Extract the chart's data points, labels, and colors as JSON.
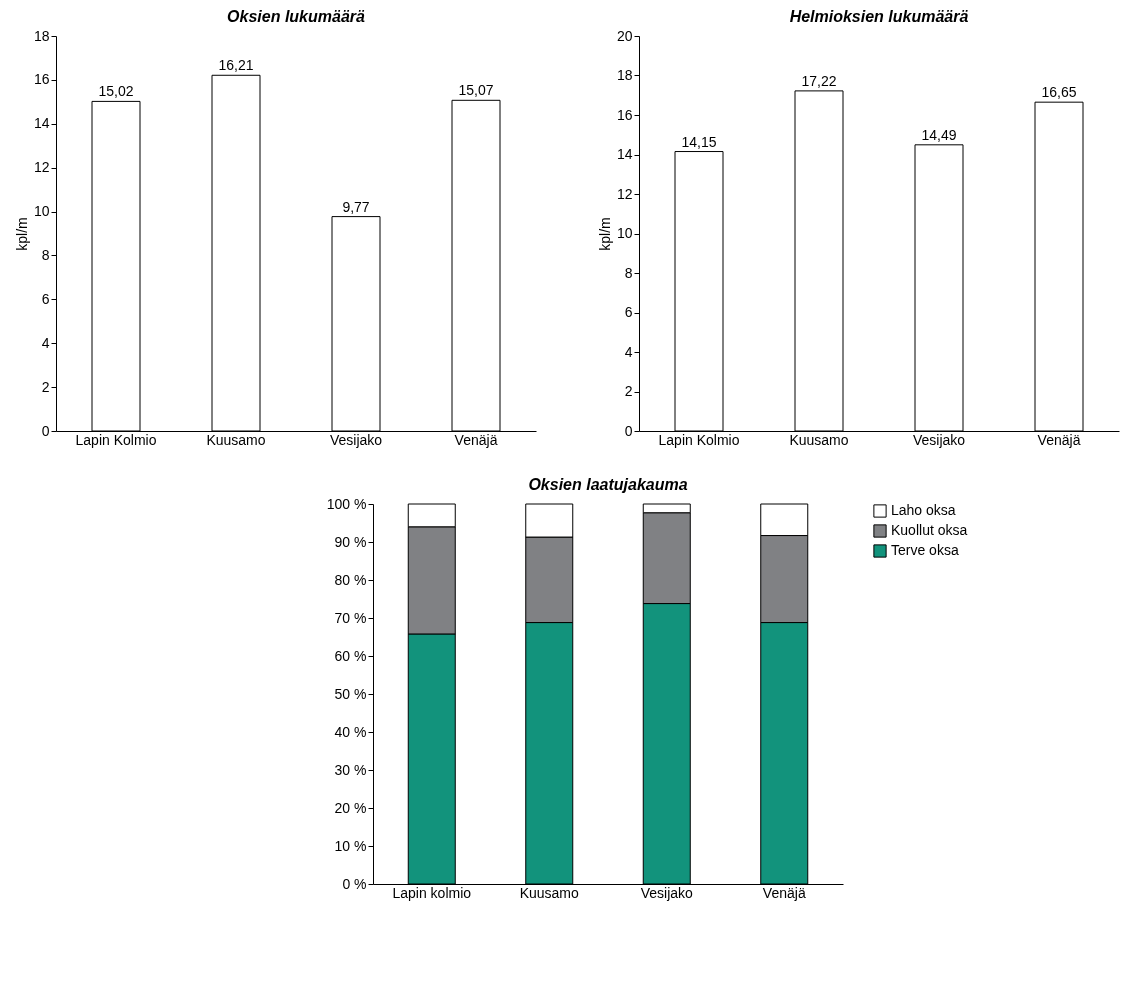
{
  "chart_data": [
    {
      "type": "bar",
      "title": "Oksien lukumäärä",
      "ylabel": "kpl/m",
      "categories": [
        "Lapin Kolmio",
        "Kuusamo",
        "Vesijako",
        "Venäjä"
      ],
      "values": [
        15.02,
        16.21,
        9.77,
        15.07
      ],
      "value_labels": [
        "15,02",
        "16,21",
        "9,77",
        "15,07"
      ],
      "color": "#ffffff",
      "ylim": [
        0,
        18
      ],
      "yticks": [
        0,
        2,
        4,
        6,
        8,
        10,
        12,
        14,
        16,
        18
      ],
      "grid": false,
      "legend": false
    },
    {
      "type": "bar",
      "title": "Helmioksien lukumäärä",
      "ylabel": "kpl/m",
      "categories": [
        "Lapin Kolmio",
        "Kuusamo",
        "Vesijako",
        "Venäjä"
      ],
      "values": [
        14.15,
        17.22,
        14.49,
        16.65
      ],
      "value_labels": [
        "14,15",
        "17,22",
        "14,49",
        "16,65"
      ],
      "color": "#ffffff",
      "ylim": [
        0,
        20
      ],
      "yticks": [
        0,
        2,
        4,
        6,
        8,
        10,
        12,
        14,
        16,
        18,
        20
      ],
      "grid": false,
      "legend": false
    },
    {
      "type": "bar",
      "title": "Oksien laatujakauma",
      "categories": [
        "Lapin kolmio",
        "Kuusamo",
        "Vesijako",
        "Venäjä"
      ],
      "stacked": true,
      "series": [
        {
          "name": "Terve oksa",
          "color": "#12937c",
          "values": [
            65.8,
            68.8,
            73.8,
            68.8
          ]
        },
        {
          "name": "Kuollut oksa",
          "color": "#808184",
          "values": [
            28.2,
            22.5,
            23.9,
            22.9
          ]
        },
        {
          "name": "Laho oksa",
          "color": "#ffffff",
          "values": [
            6,
            8.7,
            2.3,
            8.3
          ]
        }
      ],
      "ylim": [
        0,
        100
      ],
      "yticks": [
        {
          "value": 0,
          "label": "0 %"
        },
        {
          "value": 10,
          "label": "10 %"
        },
        {
          "value": 20,
          "label": "20 %"
        },
        {
          "value": 30,
          "label": "30 %"
        },
        {
          "value": 40,
          "label": "40 %"
        },
        {
          "value": 50,
          "label": "50 %"
        },
        {
          "value": 60,
          "label": "60 %"
        },
        {
          "value": 70,
          "label": "70 %"
        },
        {
          "value": 80,
          "label": "80 %"
        },
        {
          "value": 90,
          "label": "90 %"
        },
        {
          "value": 100,
          "label": "100 %"
        }
      ],
      "grid": false,
      "legend": "right"
    }
  ]
}
